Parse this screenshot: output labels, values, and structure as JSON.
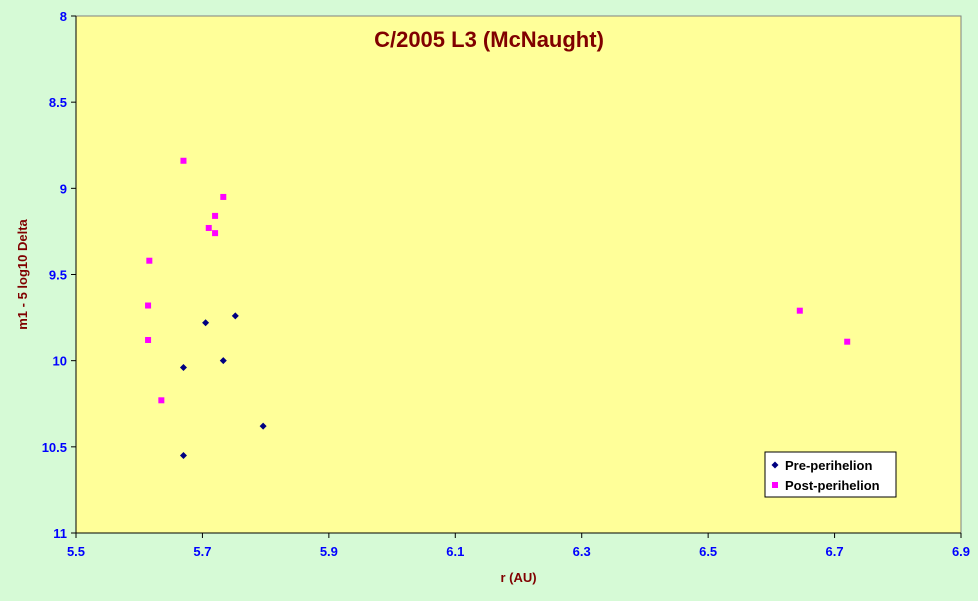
{
  "chart_data": {
    "type": "scatter",
    "title": "C/2005 L3 (McNaught)",
    "xlabel": "r (AU)",
    "ylabel": "m1 - 5 log10 Delta",
    "xlim": [
      5.5,
      6.9
    ],
    "ylim": [
      8,
      11
    ],
    "y_reversed": true,
    "x_ticks": [
      "5.5",
      "5.7",
      "5.9",
      "6.1",
      "6.3",
      "6.5",
      "6.7",
      "6.9"
    ],
    "y_ticks": [
      "8",
      "8.5",
      "9",
      "9.5",
      "10",
      "10.5",
      "11"
    ],
    "grid": false,
    "legend_position": "bottom-right",
    "series": [
      {
        "name": "Pre-perihelion",
        "marker": "diamond",
        "color": "#000080",
        "points": [
          {
            "x": 5.67,
            "y": 10.04
          },
          {
            "x": 5.705,
            "y": 9.78
          },
          {
            "x": 5.733,
            "y": 10.0
          },
          {
            "x": 5.752,
            "y": 9.74
          },
          {
            "x": 5.796,
            "y": 10.38
          },
          {
            "x": 5.67,
            "y": 10.55
          }
        ]
      },
      {
        "name": "Post-perihelion",
        "marker": "square",
        "color": "#ff00ff",
        "points": [
          {
            "x": 5.67,
            "y": 8.84
          },
          {
            "x": 5.733,
            "y": 9.05
          },
          {
            "x": 5.72,
            "y": 9.16
          },
          {
            "x": 5.71,
            "y": 9.23
          },
          {
            "x": 5.72,
            "y": 9.26
          },
          {
            "x": 5.616,
            "y": 9.42
          },
          {
            "x": 5.614,
            "y": 9.68
          },
          {
            "x": 5.614,
            "y": 9.88
          },
          {
            "x": 5.635,
            "y": 10.23
          },
          {
            "x": 6.645,
            "y": 9.71
          },
          {
            "x": 6.72,
            "y": 9.89
          }
        ]
      }
    ]
  },
  "colors": {
    "page_background": "#d6fad6",
    "plot_background": "#ffff99",
    "axis_text": "#0000ff",
    "title_text": "#800000"
  }
}
